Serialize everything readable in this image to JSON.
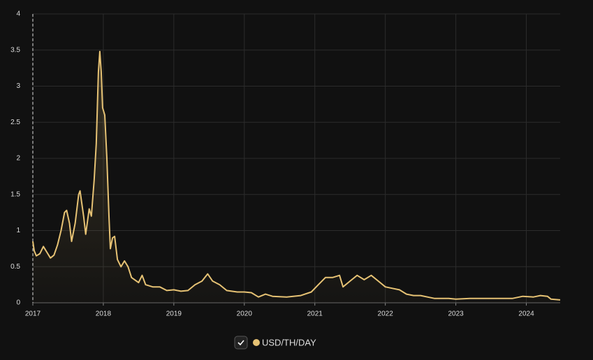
{
  "chart_data": {
    "type": "area",
    "x": [
      2017.0,
      2017.02,
      2017.05,
      2017.1,
      2017.15,
      2017.2,
      2017.25,
      2017.3,
      2017.35,
      2017.4,
      2017.45,
      2017.48,
      2017.52,
      2017.55,
      2017.6,
      2017.65,
      2017.67,
      2017.72,
      2017.75,
      2017.8,
      2017.83,
      2017.87,
      2017.9,
      2017.93,
      2017.95,
      2017.97,
      2017.99,
      2018.02,
      2018.05,
      2018.08,
      2018.1,
      2018.13,
      2018.16,
      2018.2,
      2018.25,
      2018.3,
      2018.35,
      2018.4,
      2018.5,
      2018.55,
      2018.6,
      2018.7,
      2018.8,
      2018.9,
      2019.0,
      2019.1,
      2019.2,
      2019.3,
      2019.4,
      2019.48,
      2019.55,
      2019.65,
      2019.75,
      2019.9,
      2020.0,
      2020.1,
      2020.2,
      2020.3,
      2020.4,
      2020.6,
      2020.8,
      2020.95,
      2021.05,
      2021.15,
      2021.25,
      2021.35,
      2021.4,
      2021.5,
      2021.6,
      2021.7,
      2021.8,
      2021.9,
      2022.0,
      2022.1,
      2022.2,
      2022.3,
      2022.4,
      2022.5,
      2022.7,
      2022.9,
      2023.0,
      2023.2,
      2023.5,
      2023.8,
      2023.95,
      2024.1,
      2024.2,
      2024.3,
      2024.35,
      2024.48
    ],
    "series": [
      {
        "name": "USD/TH/DAY",
        "color": "#e6c274",
        "values": [
          0.85,
          0.72,
          0.65,
          0.68,
          0.78,
          0.7,
          0.62,
          0.66,
          0.8,
          1.0,
          1.25,
          1.28,
          1.1,
          0.85,
          1.1,
          1.5,
          1.55,
          1.2,
          0.95,
          1.3,
          1.2,
          1.7,
          2.2,
          3.2,
          3.48,
          3.2,
          2.7,
          2.6,
          2.0,
          1.2,
          0.75,
          0.9,
          0.92,
          0.6,
          0.5,
          0.58,
          0.5,
          0.35,
          0.28,
          0.38,
          0.25,
          0.22,
          0.22,
          0.17,
          0.18,
          0.16,
          0.17,
          0.25,
          0.3,
          0.4,
          0.3,
          0.25,
          0.17,
          0.15,
          0.15,
          0.14,
          0.08,
          0.12,
          0.09,
          0.08,
          0.1,
          0.15,
          0.25,
          0.35,
          0.35,
          0.38,
          0.22,
          0.3,
          0.38,
          0.32,
          0.38,
          0.3,
          0.22,
          0.2,
          0.18,
          0.12,
          0.1,
          0.1,
          0.06,
          0.06,
          0.05,
          0.06,
          0.06,
          0.06,
          0.09,
          0.08,
          0.1,
          0.09,
          0.05,
          0.04
        ]
      }
    ],
    "xlim": [
      2017,
      2024.48
    ],
    "xticks": [
      2017,
      2018,
      2019,
      2020,
      2021,
      2022,
      2023,
      2024
    ],
    "ylim": [
      0,
      4
    ],
    "yticks": [
      0,
      0.5,
      1,
      1.5,
      2,
      2.5,
      3,
      3.5,
      4
    ],
    "grid": true
  }
}
